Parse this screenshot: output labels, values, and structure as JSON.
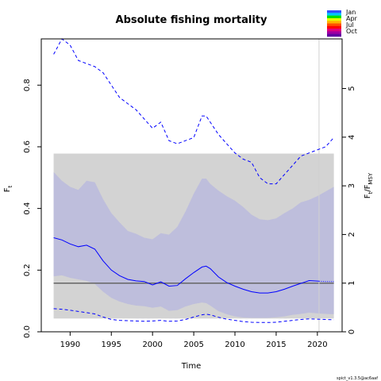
{
  "chart_data": {
    "type": "line",
    "title": "Absolute fishing mortality",
    "xlabel": "Time",
    "ylabel_main": "F",
    "ylabel_main_sub": "t",
    "ylabel_right_main": "F",
    "ylabel_right_sub1": "t",
    "ylabel_right_sep": "/F",
    "ylabel_right_sub2": "MSY",
    "xlim": [
      1986.5,
      2023
    ],
    "ylim": [
      0,
      0.95
    ],
    "right_axis_factor": 0.1578,
    "x_ticks": [
      1990,
      1995,
      2000,
      2005,
      2010,
      2015,
      2020
    ],
    "y_ticks": [
      0.0,
      0.2,
      0.4,
      0.6,
      0.8
    ],
    "y_tick_labels": [
      "0.0",
      "0.2",
      "0.4",
      "0.6",
      "0.8"
    ],
    "right_ticks": [
      0,
      1,
      2,
      3,
      4,
      5
    ],
    "grey_band": {
      "x": [
        1988,
        2022
      ],
      "lower": 0.043,
      "upper": 0.578
    },
    "fmsy_line": 0.1578,
    "vertical_line_x": 2020.2,
    "series": [
      {
        "name": "",
        "x": [
          1988,
          1989,
          1990,
          1991,
          1992,
          1993,
          1994,
          1995,
          1996,
          1997,
          1998,
          1999,
          2000,
          2001,
          2002,
          2003,
          2004,
          2005,
          2006,
          2006.5,
          2007,
          2008,
          2009,
          2010,
          2011,
          2012,
          2013,
          2014,
          2015,
          2016,
          2017,
          2018,
          2019,
          2020.2
        ],
        "y": [
          0.305,
          0.298,
          0.285,
          0.276,
          0.281,
          0.268,
          0.23,
          0.2,
          0.182,
          0.17,
          0.165,
          0.163,
          0.152,
          0.162,
          0.148,
          0.15,
          0.172,
          0.192,
          0.21,
          0.213,
          0.205,
          0.178,
          0.16,
          0.148,
          0.138,
          0.13,
          0.126,
          0.126,
          0.13,
          0.138,
          0.148,
          0.157,
          0.166,
          0.164
        ]
      },
      {
        "name": "",
        "x": [
          2020.2,
          2021,
          2022
        ],
        "y": [
          0.164,
          0.163,
          0.163
        ]
      }
    ],
    "ci": {
      "x": [
        1988,
        1989,
        1990,
        1991,
        1992,
        1993,
        1994,
        1995,
        1996,
        1997,
        1998,
        1999,
        2000,
        2001,
        2002,
        2003,
        2004,
        2005,
        2006,
        2006.5,
        2007,
        2008,
        2009,
        2010,
        2011,
        2012,
        2013,
        2014,
        2015,
        2016,
        2017,
        2018,
        2019,
        2020,
        2021,
        2022
      ],
      "upper": [
        0.9,
        0.95,
        0.93,
        0.88,
        0.87,
        0.86,
        0.84,
        0.8,
        0.76,
        0.74,
        0.72,
        0.69,
        0.66,
        0.68,
        0.62,
        0.61,
        0.62,
        0.63,
        0.7,
        0.7,
        0.68,
        0.64,
        0.61,
        0.58,
        0.56,
        0.55,
        0.5,
        0.48,
        0.48,
        0.51,
        0.54,
        0.57,
        0.58,
        0.59,
        0.6,
        0.63
      ],
      "lower": [
        0.075,
        0.073,
        0.07,
        0.066,
        0.062,
        0.058,
        0.048,
        0.04,
        0.037,
        0.036,
        0.035,
        0.034,
        0.035,
        0.037,
        0.034,
        0.035,
        0.04,
        0.048,
        0.055,
        0.057,
        0.055,
        0.047,
        0.041,
        0.037,
        0.033,
        0.031,
        0.03,
        0.03,
        0.031,
        0.034,
        0.037,
        0.04,
        0.042,
        0.041,
        0.04,
        0.039
      ]
    },
    "ci_display": {
      "x": [
        1988,
        1989,
        1990,
        1991,
        1992,
        1993,
        1994,
        1995,
        1996,
        1997,
        1998,
        1999,
        2000,
        2001,
        2002,
        2003,
        2004,
        2005,
        2006,
        2006.5,
        2007,
        2008,
        2009,
        2010,
        2011,
        2012,
        2013,
        2014,
        2015,
        2016,
        2017,
        2018,
        2019,
        2020,
        2021,
        2022
      ],
      "upper": [
        0.518,
        0.49,
        0.47,
        0.46,
        0.49,
        0.485,
        0.43,
        0.385,
        0.355,
        0.327,
        0.318,
        0.305,
        0.3,
        0.32,
        0.315,
        0.34,
        0.39,
        0.448,
        0.497,
        0.497,
        0.48,
        0.458,
        0.44,
        0.425,
        0.405,
        0.38,
        0.365,
        0.362,
        0.368,
        0.385,
        0.4,
        0.42,
        0.428,
        0.44,
        0.455,
        0.47
      ],
      "lower": [
        0.18,
        0.183,
        0.175,
        0.17,
        0.165,
        0.155,
        0.13,
        0.11,
        0.098,
        0.09,
        0.085,
        0.083,
        0.078,
        0.082,
        0.068,
        0.07,
        0.082,
        0.09,
        0.095,
        0.093,
        0.085,
        0.067,
        0.057,
        0.05,
        0.046,
        0.045,
        0.045,
        0.045,
        0.047,
        0.05,
        0.055,
        0.058,
        0.062,
        0.06,
        0.058,
        0.057
      ]
    },
    "colors": {
      "line": "#0000ff",
      "ci_band": "#bbbbdd",
      "grey_band": "#d3d3d3",
      "fmsy": "#666666",
      "vline": "#d0d0d0"
    },
    "legend": {
      "entries": [
        "Jan",
        "Apr",
        "Jul",
        "Oct"
      ],
      "colors": [
        "#3050ff",
        "#00c8ff",
        "#00e000",
        "#e8ff00",
        "#ffb000",
        "#ff5000",
        "#ff0000",
        "#e00080",
        "#a000a0",
        "#6000a0"
      ]
    },
    "grid": false,
    "footer": "spict_v1.3.5@ac6aaf"
  }
}
